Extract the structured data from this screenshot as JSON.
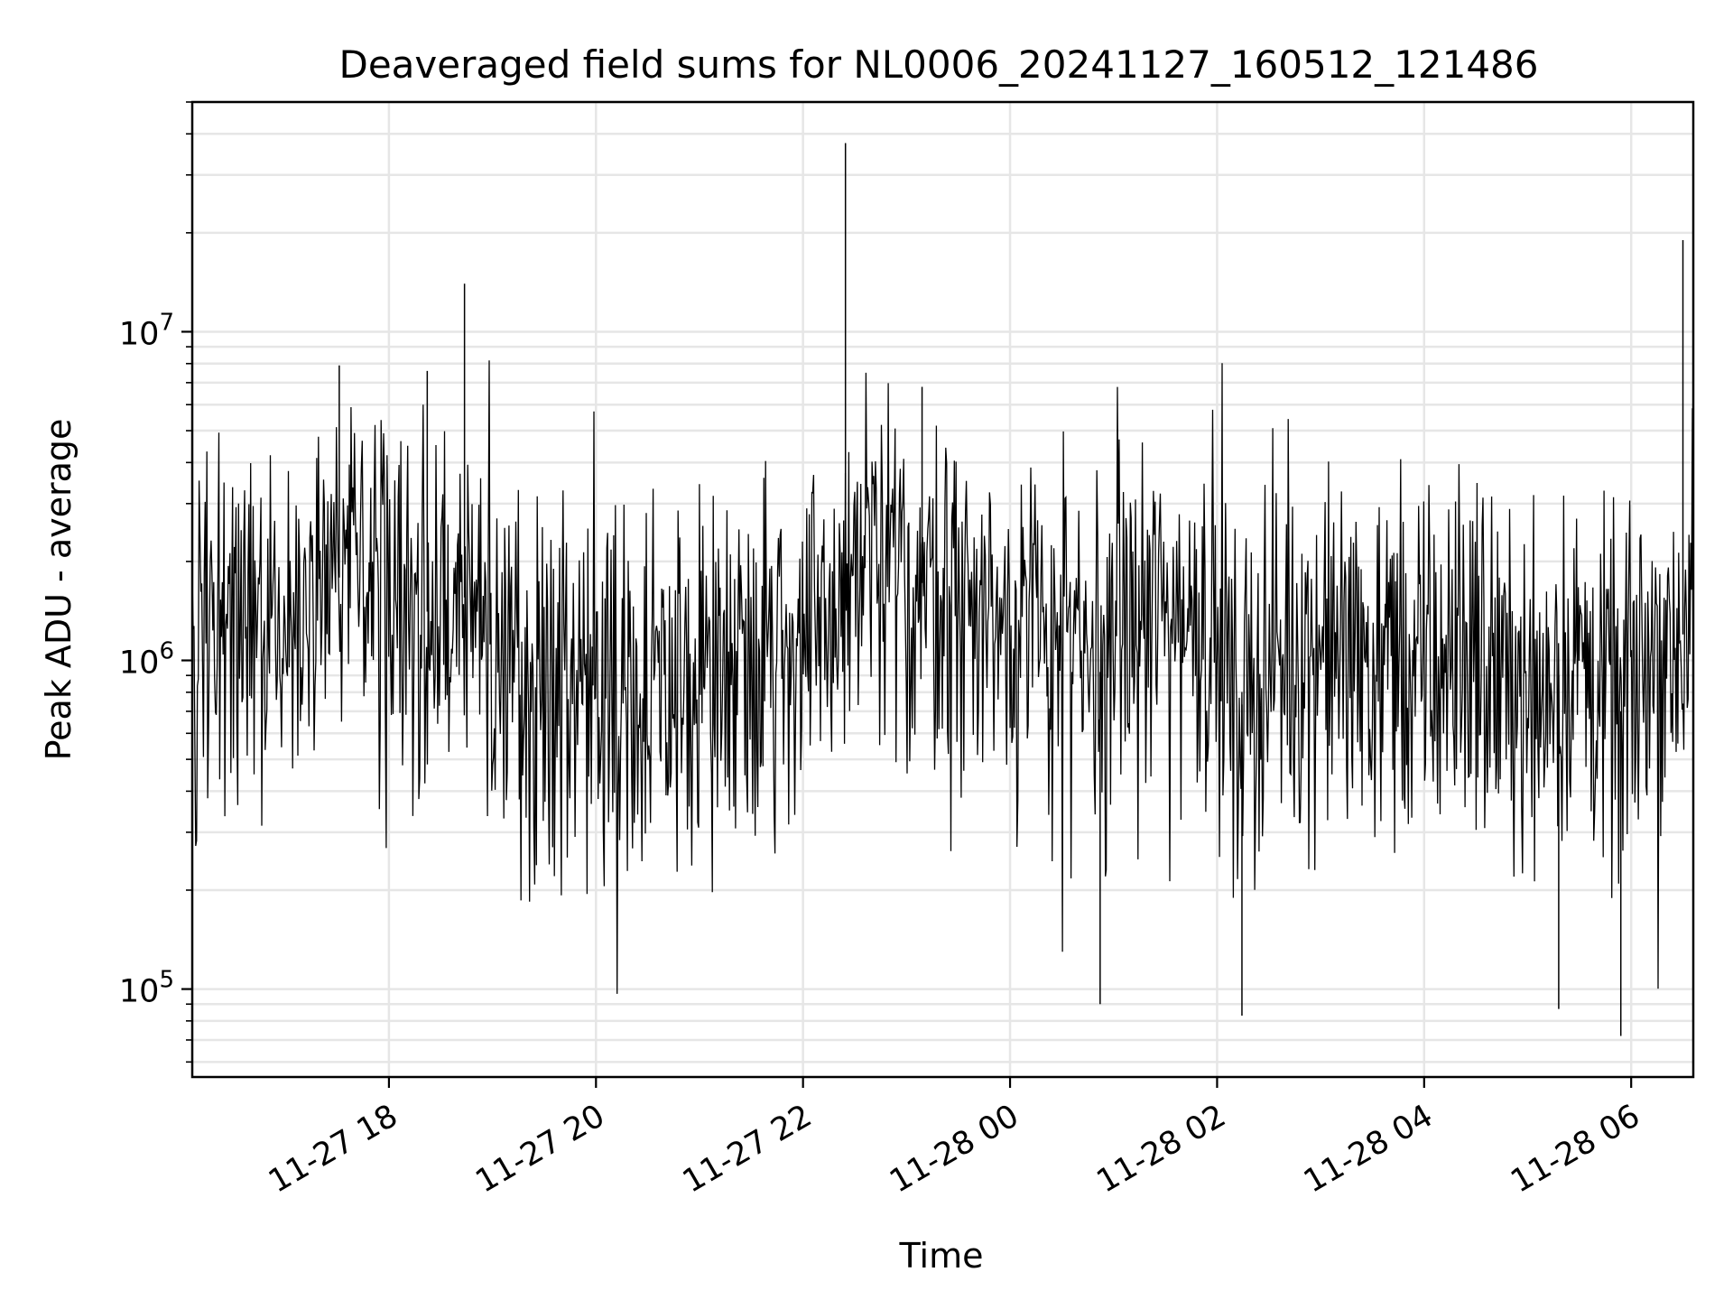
{
  "chart_data": {
    "type": "line",
    "title": "Deaveraged field sums for NL0006_20241127_160512_121486",
    "xlabel": "Time",
    "ylabel": "Peak ADU - average",
    "yscale": "log",
    "grid": true,
    "line_color": "#000000",
    "grid_color": "#e6e6e6",
    "x_ticks": [
      "11-27 18",
      "11-27 20",
      "11-27 22",
      "11-28 00",
      "11-28 02",
      "11-28 04",
      "11-28 06"
    ],
    "x_tick_hours": [
      18,
      20,
      22,
      24,
      26,
      28,
      30
    ],
    "xlim_hours": [
      16.1,
      30.6
    ],
    "y_ticks": [
      {
        "base": "10",
        "exp": "5",
        "value": 100000
      },
      {
        "base": "10",
        "exp": "6",
        "value": 1000000
      },
      {
        "base": "10",
        "exp": "7",
        "value": 10000000
      }
    ],
    "ylim": [
      54000,
      50000000
    ],
    "series": [
      {
        "x_hours": [
          16.1,
          16.3,
          17.0,
          17.5,
          18.0,
          18.4,
          18.7,
          19.0,
          19.2,
          19.4,
          19.6,
          20.0,
          20.2,
          20.4,
          20.7,
          21.0,
          21.5,
          22.0,
          22.3,
          22.4,
          22.6,
          23.0,
          23.2,
          23.5,
          24.0,
          24.6,
          24.8,
          25.0,
          25.5,
          26.0,
          26.2,
          26.5,
          27.0,
          27.5,
          28.0,
          28.5,
          29.0,
          29.3,
          29.5,
          29.7,
          29.9,
          30.0,
          30.2,
          30.5,
          30.6
        ],
        "y": [
          1200000,
          1500000,
          1300000,
          1800000,
          1500000,
          1400000,
          1600000,
          1200000,
          900000,
          800000,
          950000,
          850000,
          900000,
          750000,
          700000,
          1000000,
          1100000,
          1050000,
          1300000,
          1600000,
          1900000,
          1500000,
          1800000,
          1400000,
          1300000,
          1100000,
          800000,
          1200000,
          1400000,
          1300000,
          700000,
          1000000,
          1100000,
          1000000,
          900000,
          1100000,
          800000,
          900000,
          1000000,
          750000,
          700000,
          800000,
          1100000,
          1200000,
          1300000
        ],
        "spikes": [
          {
            "x_hours": 17.52,
            "y": 7900000
          },
          {
            "x_hours": 18.37,
            "y": 7600000
          },
          {
            "x_hours": 18.73,
            "y": 14000000
          },
          {
            "x_hours": 22.41,
            "y": 37500000
          },
          {
            "x_hours": 23.15,
            "y": 6800000
          },
          {
            "x_hours": 30.5,
            "y": 19000000
          },
          {
            "x_hours": 29.9,
            "y": 72000
          },
          {
            "x_hours": 26.24,
            "y": 83000
          },
          {
            "x_hours": 24.87,
            "y": 90000
          },
          {
            "x_hours": 29.3,
            "y": 87000
          }
        ]
      }
    ]
  }
}
